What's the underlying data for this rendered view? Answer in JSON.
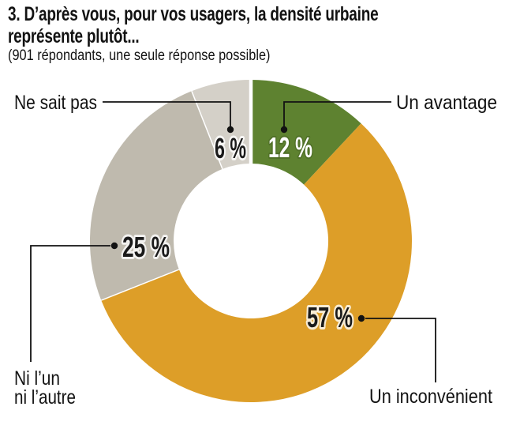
{
  "title": {
    "line1": "3. D’après vous, pour vos usagers, la densité urbaine",
    "line2": "représente plutôt..."
  },
  "subtitle": "(901 répondants, une seule réponse possible)",
  "chart_data": {
    "type": "pie",
    "subtype": "donut",
    "title": "3. D’après vous, pour vos usagers, la densité urbaine représente plutôt...",
    "subtitle": "(901 répondants, une seule réponse possible)",
    "respondents": 901,
    "categories": [
      "Un avantage",
      "Un inconvénient",
      "Ni l’un ni l’autre",
      "Ne sait pas"
    ],
    "values": [
      12,
      57,
      25,
      6
    ],
    "unit": "%",
    "value_labels": [
      "12 %",
      "57 %",
      "25 %",
      "6 %"
    ],
    "colors": [
      "#5e8230",
      "#dd9e28",
      "#bfbaae",
      "#d4d0c8"
    ],
    "start_angle_deg": 0,
    "direction": "clockwise",
    "donut_hole_ratio": 0.48,
    "legend_position": "callouts",
    "label_text_color": "#1a1a1a",
    "label_text_color_on_green": "#ffffff"
  },
  "display": {
    "ni_lines": [
      "Ni l’un",
      "ni l’autre"
    ]
  }
}
